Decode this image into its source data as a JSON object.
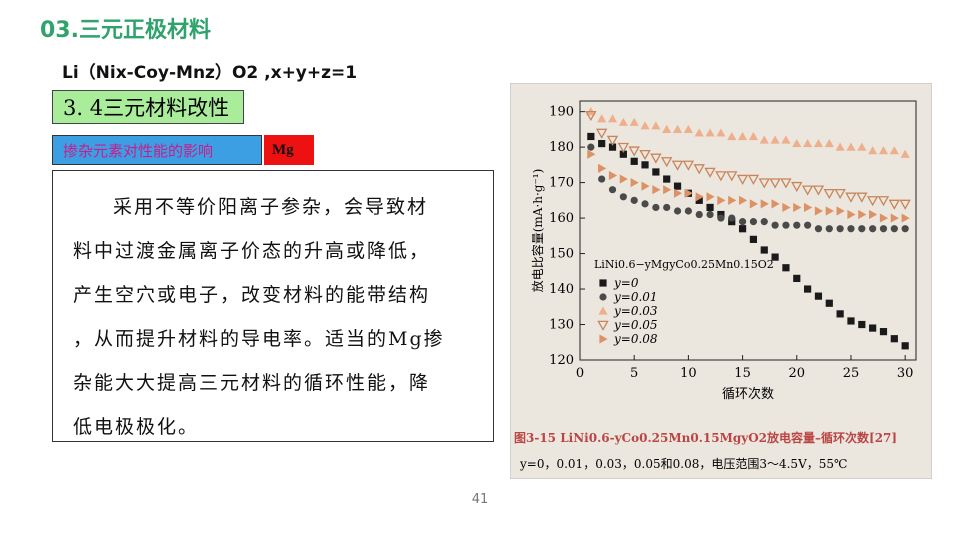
{
  "header": {
    "title": "03.三元正极材料",
    "formula": "Li（Nix-Coy-Mnz）O2 ,x+y+z=1"
  },
  "section": "3. 4三元材料改性",
  "tag": {
    "topic": "掺杂元素对性能的影响",
    "element": "Mg"
  },
  "paragraph": [
    "采用不等价阳离子参杂，会导致材",
    "料中过渡金属离子价态的升高或降低，",
    "产生空穴或电子，改变材料的能带结构",
    "，从而提升材料的导电率。适当的Mg掺",
    "杂能大大提高三元材料的循环性能，降",
    "低电极极化。"
  ],
  "page_number": "41",
  "chart_data": {
    "type": "scatter",
    "x_label": "循环次数",
    "y_label": "放电比容量(mA·h·g⁻¹)",
    "legend_title": "LiNi0.6−yMgyCo0.25Mn0.15O2",
    "caption": [
      "图3-15  LiNi0.6-yCo0.25Mn0.15MgyO2放电容量–循环次数[27]",
      "y=0，0.01，0.03，0.05和0.08，电压范围3～4.5V，55℃"
    ],
    "x": [
      1,
      2,
      3,
      4,
      5,
      6,
      7,
      8,
      9,
      10,
      11,
      12,
      13,
      14,
      15,
      16,
      17,
      18,
      19,
      20,
      21,
      22,
      23,
      24,
      25,
      26,
      27,
      28,
      29,
      30
    ],
    "xlim": [
      0,
      31
    ],
    "ylim": [
      120,
      193
    ],
    "xticks": [
      0,
      5,
      10,
      15,
      20,
      25,
      30
    ],
    "yticks": [
      120,
      130,
      140,
      150,
      160,
      170,
      180,
      190
    ],
    "series": [
      {
        "name": "y=0",
        "color": "#1a1a1a",
        "marker": "square",
        "values": [
          183,
          181,
          180,
          178,
          176,
          175,
          173,
          171,
          169,
          167,
          165,
          163,
          161,
          159,
          157,
          154,
          151,
          149,
          146,
          143,
          140,
          138,
          136,
          133,
          131,
          130,
          129,
          128,
          126,
          124
        ]
      },
      {
        "name": "y=0.01",
        "color": "#4a4a4a",
        "marker": "circle",
        "values": [
          180,
          171,
          168,
          166,
          165,
          164,
          163,
          163,
          162,
          162,
          161,
          161,
          160,
          160,
          159,
          159,
          159,
          158,
          158,
          158,
          158,
          157,
          157,
          157,
          157,
          157,
          157,
          157,
          157,
          157
        ]
      },
      {
        "name": "y=0.03",
        "color": "#eeb08c",
        "marker": "triangle-up",
        "values": [
          190,
          188,
          188,
          187,
          187,
          186,
          186,
          185,
          185,
          185,
          184,
          184,
          184,
          183,
          183,
          183,
          182,
          182,
          182,
          181,
          181,
          181,
          181,
          180,
          180,
          180,
          179,
          179,
          179,
          178
        ]
      },
      {
        "name": "y=0.05",
        "color": "#c9845a",
        "marker": "triangle-down",
        "values": [
          189,
          184,
          182,
          180,
          179,
          178,
          177,
          176,
          175,
          175,
          174,
          173,
          172,
          172,
          171,
          171,
          170,
          170,
          170,
          169,
          168,
          168,
          167,
          167,
          166,
          166,
          165,
          165,
          164,
          164
        ]
      },
      {
        "name": "y=0.08",
        "color": "#dd9266",
        "marker": "triangle-right",
        "values": [
          178,
          174,
          172,
          171,
          170,
          169,
          168,
          168,
          167,
          167,
          166,
          166,
          165,
          165,
          165,
          164,
          164,
          164,
          163,
          163,
          163,
          162,
          162,
          162,
          161,
          161,
          161,
          160,
          160,
          160
        ]
      }
    ]
  }
}
